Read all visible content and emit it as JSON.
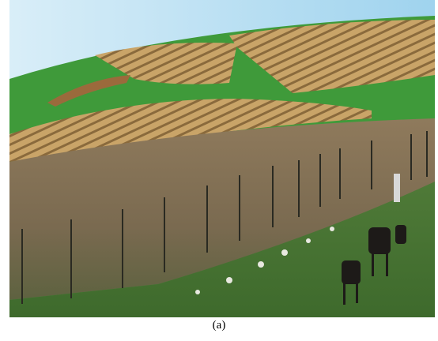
{
  "caption": "(a)"
}
